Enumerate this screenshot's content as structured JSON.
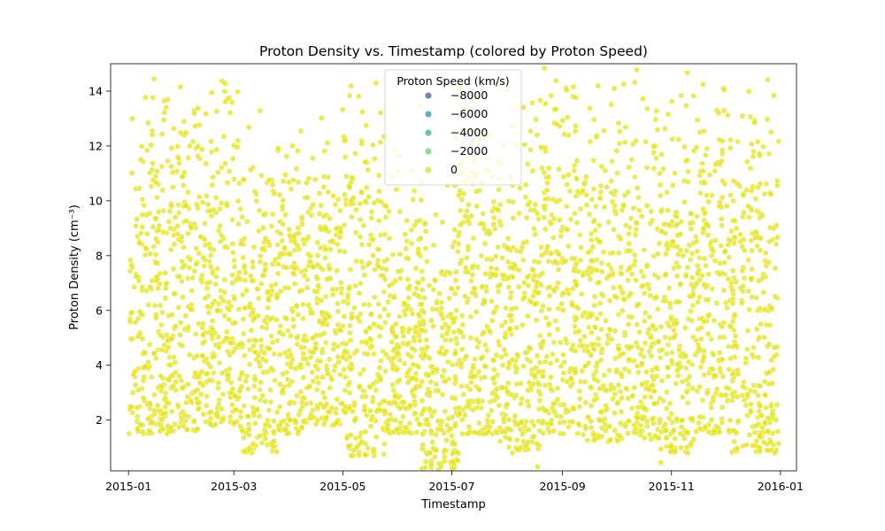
{
  "chart_data": {
    "type": "scatter",
    "title": "Proton Density vs. Timestamp (colored by Proton Speed)",
    "xlabel": "Timestamp",
    "ylabel": "Proton Density (cm⁻³)",
    "x_range": [
      "2014-12-22",
      "2016-01-10"
    ],
    "ylim": [
      0.15,
      15.0
    ],
    "x_ticks": [
      "2015-01",
      "2015-03",
      "2015-05",
      "2015-07",
      "2015-09",
      "2015-11",
      "2016-01"
    ],
    "y_ticks": [
      2,
      4,
      6,
      8,
      10,
      12,
      14
    ],
    "grid": false,
    "legend": {
      "title": "Proton Speed (km/s)",
      "position": "top-center",
      "entries": [
        {
          "label": "−8000",
          "color": "#3b528b"
        },
        {
          "label": "−6000",
          "color": "#21918c"
        },
        {
          "label": "−4000",
          "color": "#27ad81"
        },
        {
          "label": "−2000",
          "color": "#5ec962"
        },
        {
          "label": "0",
          "color": "#d0e11c"
        }
      ]
    },
    "colormap": "viridis",
    "point_color": "#e3e418",
    "point_opacity": 0.75,
    "density_bands": [
      {
        "start": "2015-01-01",
        "end": "2015-01-24",
        "low": 1.5,
        "high": 15.0
      },
      {
        "start": "2015-01-24",
        "end": "2015-02-10",
        "low": 1.6,
        "high": 15.0
      },
      {
        "start": "2015-02-10",
        "end": "2015-03-04",
        "low": 1.8,
        "high": 15.0
      },
      {
        "start": "2015-03-04",
        "end": "2015-03-25",
        "low": 0.8,
        "high": 12.5
      },
      {
        "start": "2015-03-25",
        "end": "2015-04-12",
        "low": 1.5,
        "high": 14.0
      },
      {
        "start": "2015-04-12",
        "end": "2015-05-02",
        "low": 1.8,
        "high": 13.5
      },
      {
        "start": "2015-05-02",
        "end": "2015-05-25",
        "low": 0.7,
        "high": 14.5
      },
      {
        "start": "2015-05-25",
        "end": "2015-06-14",
        "low": 1.5,
        "high": 13.0
      },
      {
        "start": "2015-06-14",
        "end": "2015-07-05",
        "low": 0.2,
        "high": 11.0
      },
      {
        "start": "2015-07-05",
        "end": "2015-07-28",
        "low": 1.5,
        "high": 14.5
      },
      {
        "start": "2015-07-28",
        "end": "2015-08-20",
        "low": 0.9,
        "high": 14.5
      },
      {
        "start": "2015-08-20",
        "end": "2015-09-12",
        "low": 1.5,
        "high": 15.0
      },
      {
        "start": "2015-09-12",
        "end": "2015-10-03",
        "low": 1.2,
        "high": 15.0
      },
      {
        "start": "2015-10-03",
        "end": "2015-10-25",
        "low": 1.3,
        "high": 15.0
      },
      {
        "start": "2015-10-25",
        "end": "2015-11-15",
        "low": 0.8,
        "high": 15.0
      },
      {
        "start": "2015-11-15",
        "end": "2015-12-05",
        "low": 1.5,
        "high": 15.0
      },
      {
        "start": "2015-12-05",
        "end": "2015-12-31",
        "low": 0.8,
        "high": 15.0
      }
    ],
    "outliers": [
      {
        "x": "2015-06-25",
        "y": 0.3
      },
      {
        "x": "2015-06-27",
        "y": 0.5
      },
      {
        "x": "2015-08-18",
        "y": 0.3
      },
      {
        "x": "2015-10-26",
        "y": 0.45
      },
      {
        "x": "2015-08-04",
        "y": 0.8
      }
    ]
  }
}
